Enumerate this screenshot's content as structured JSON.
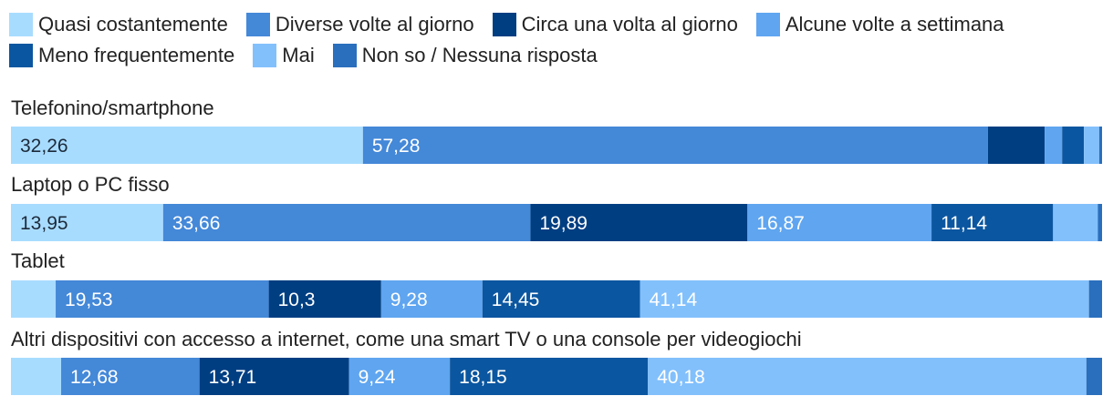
{
  "chart_data": {
    "type": "bar",
    "orientation": "horizontal",
    "stacked": true,
    "legend_position": "top",
    "series": [
      {
        "name": "Quasi costantemente",
        "color": "#a8dcff"
      },
      {
        "name": "Diverse volte al giorno",
        "color": "#4488d8"
      },
      {
        "name": "Circa una volta al giorno",
        "color": "#003e82"
      },
      {
        "name": "Alcune volte a settimana",
        "color": "#5fa5f0"
      },
      {
        "name": "Meno frequentemente",
        "color": "#0b56a0"
      },
      {
        "name": "Mai",
        "color": "#82c0fc"
      },
      {
        "name": "Non so / Nessuna risposta",
        "color": "#2a6fbd"
      }
    ],
    "categories": [
      "Telefonino/smartphone",
      "Laptop o PC fisso",
      "Tablet",
      "Altri dispositivi con accesso a internet, come una smart TV o una console per videogiochi"
    ],
    "values": [
      [
        32.26,
        57.28,
        5.2,
        1.6,
        2.0,
        1.4,
        0.26
      ],
      [
        13.95,
        33.66,
        19.89,
        16.87,
        11.14,
        4.1,
        0.39
      ],
      [
        4.1,
        19.53,
        10.3,
        9.28,
        14.45,
        41.14,
        1.2
      ],
      [
        4.6,
        12.68,
        13.71,
        9.24,
        18.15,
        40.18,
        1.44
      ]
    ],
    "labels": [
      [
        "32,26",
        "57,28",
        "",
        "",
        "",
        "",
        ""
      ],
      [
        "13,95",
        "33,66",
        "19,89",
        "16,87",
        "11,14",
        "",
        ""
      ],
      [
        "",
        "19,53",
        "10,3",
        "9,28",
        "14,45",
        "41,14",
        ""
      ],
      [
        "",
        "12,68",
        "13,71",
        "9,24",
        "18,15",
        "40,18",
        ""
      ]
    ],
    "xlim": [
      0,
      100
    ]
  }
}
